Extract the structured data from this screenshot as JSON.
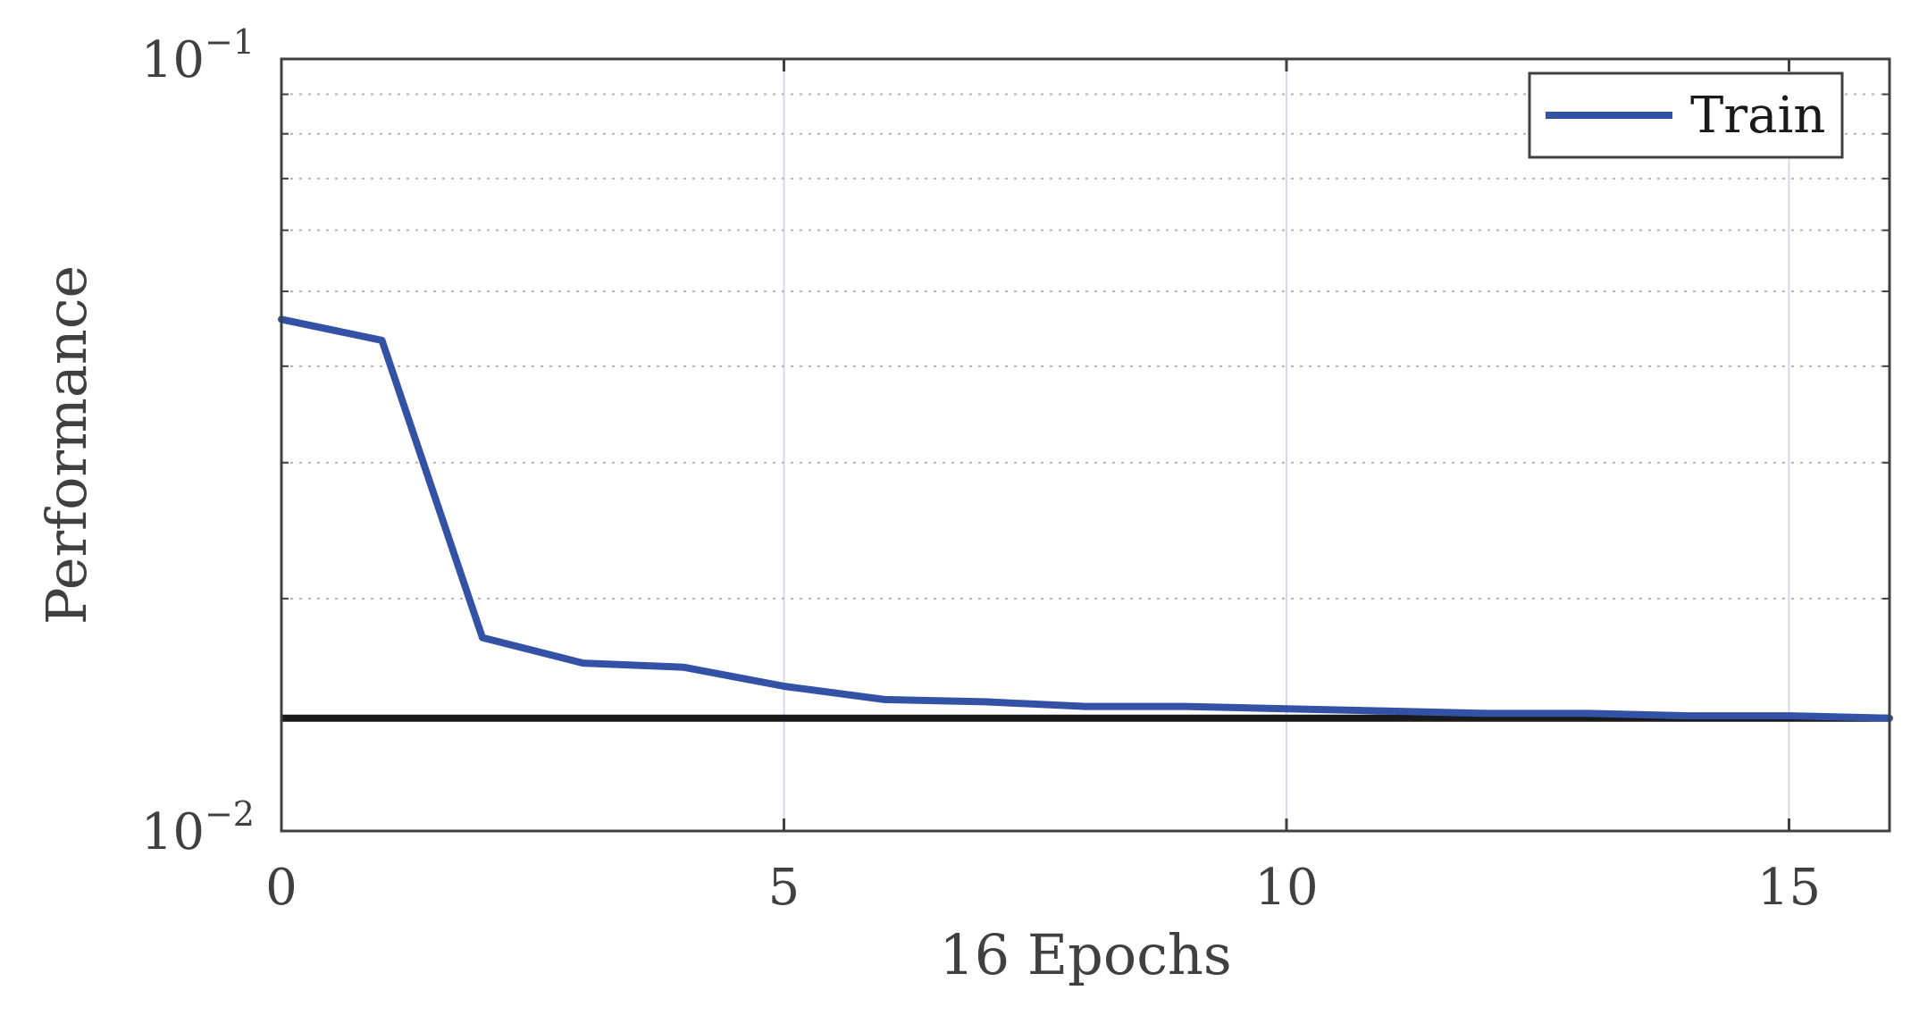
{
  "chart_data": {
    "type": "line",
    "title": "",
    "xlabel": "16 Epochs",
    "ylabel": "Performance",
    "x_scale": "linear",
    "y_scale": "log",
    "xlim": [
      0,
      16
    ],
    "ylim": [
      0.01,
      0.1
    ],
    "x_ticks": [
      0,
      5,
      10,
      15
    ],
    "x_tick_labels": [
      "0",
      "5",
      "10",
      "15"
    ],
    "y_ticks": [
      0.01,
      0.1
    ],
    "y_tick_labels": [
      {
        "base": "10",
        "exp": "−2"
      },
      {
        "base": "10",
        "exp": "−1"
      }
    ],
    "grid": "on (dotted minor y-grid, light x-grid)",
    "legend_position": "top-right",
    "series": [
      {
        "name": "Train",
        "color": "#3352a6",
        "x": [
          0,
          1,
          2,
          3,
          4,
          5,
          6,
          7,
          8,
          9,
          10,
          11,
          12,
          13,
          14,
          15,
          16
        ],
        "y": [
          0.046,
          0.0432,
          0.0178,
          0.0165,
          0.0163,
          0.0154,
          0.0148,
          0.0147,
          0.0145,
          0.0145,
          0.0144,
          0.0143,
          0.0142,
          0.0142,
          0.0141,
          0.0141,
          0.014
        ]
      }
    ],
    "reference_line": {
      "y": 0.014,
      "color": "#1a1a1a"
    }
  }
}
